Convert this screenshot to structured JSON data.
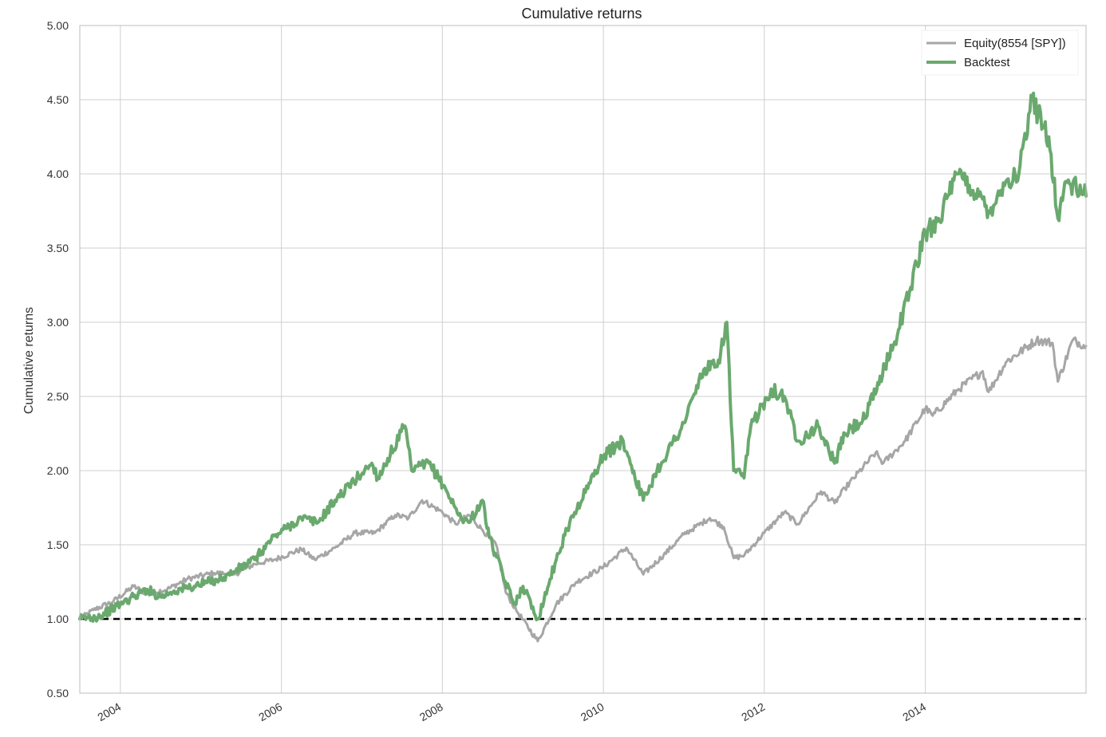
{
  "chart_data": {
    "type": "line",
    "title": "Cumulative returns",
    "ylabel": "Cumulative returns",
    "xlabel": "",
    "xlim": [
      "2003-07-01",
      "2015-12-31"
    ],
    "ylim": [
      0.5,
      5.0
    ],
    "y_ticks": [
      0.5,
      1.0,
      1.5,
      2.0,
      2.5,
      3.0,
      3.5,
      4.0,
      4.5,
      5.0
    ],
    "y_tick_labels": [
      "0.50",
      "1.00",
      "1.50",
      "2.00",
      "2.50",
      "3.00",
      "3.50",
      "4.00",
      "4.50",
      "5.00"
    ],
    "x_ticks": [
      "2004-01-01",
      "2006-01-01",
      "2008-01-01",
      "2010-01-01",
      "2012-01-01",
      "2014-01-01"
    ],
    "x_tick_labels": [
      "2004",
      "2006",
      "2008",
      "2010",
      "2012",
      "2014"
    ],
    "grid": true,
    "legend_position": "top-right",
    "baseline": {
      "y": 1.0,
      "style": "dashed",
      "color": "#000000"
    },
    "series": [
      {
        "name": "Equity(8554 [SPY])",
        "color": "#a6a6a6",
        "x": [
          "2003-07-01",
          "2003-09-01",
          "2003-12-01",
          "2004-03-01",
          "2004-05-01",
          "2004-08-01",
          "2004-11-01",
          "2005-03-01",
          "2005-06-01",
          "2005-09-01",
          "2005-12-01",
          "2006-04-01",
          "2006-06-01",
          "2006-09-01",
          "2006-12-01",
          "2007-03-01",
          "2007-06-01",
          "2007-08-01",
          "2007-10-01",
          "2008-01-01",
          "2008-03-01",
          "2008-05-01",
          "2008-07-01",
          "2008-09-01",
          "2008-10-15",
          "2008-12-01",
          "2009-03-09",
          "2009-06-01",
          "2009-09-01",
          "2010-01-01",
          "2010-04-15",
          "2010-07-01",
          "2010-10-01",
          "2011-01-01",
          "2011-04-29",
          "2011-07-01",
          "2011-08-15",
          "2011-10-03",
          "2012-01-01",
          "2012-04-01",
          "2012-06-01",
          "2012-09-14",
          "2012-11-15",
          "2013-01-01",
          "2013-05-20",
          "2013-06-24",
          "2013-10-01",
          "2014-01-01",
          "2014-02-03",
          "2014-06-01",
          "2014-09-18",
          "2014-10-15",
          "2015-01-01",
          "2015-05-20",
          "2015-08-01",
          "2015-08-25",
          "2015-11-01",
          "2015-12-31"
        ],
        "values": [
          1.0,
          1.06,
          1.12,
          1.22,
          1.17,
          1.2,
          1.27,
          1.31,
          1.3,
          1.37,
          1.4,
          1.47,
          1.4,
          1.48,
          1.58,
          1.58,
          1.7,
          1.68,
          1.8,
          1.72,
          1.64,
          1.7,
          1.6,
          1.5,
          1.18,
          1.06,
          0.85,
          1.1,
          1.25,
          1.35,
          1.48,
          1.3,
          1.43,
          1.57,
          1.68,
          1.62,
          1.41,
          1.43,
          1.58,
          1.72,
          1.64,
          1.86,
          1.78,
          1.88,
          2.12,
          2.05,
          2.2,
          2.42,
          2.37,
          2.55,
          2.67,
          2.53,
          2.73,
          2.88,
          2.86,
          2.6,
          2.88,
          2.84
        ]
      },
      {
        "name": "Backtest",
        "color": "#6aa96e",
        "x": [
          "2003-07-01",
          "2003-10-01",
          "2004-01-01",
          "2004-03-01",
          "2004-05-01",
          "2004-07-01",
          "2004-09-01",
          "2004-12-01",
          "2005-04-15",
          "2005-06-01",
          "2005-09-01",
          "2005-12-01",
          "2006-04-01",
          "2006-06-15",
          "2006-09-01",
          "2007-02-15",
          "2007-03-15",
          "2007-07-15",
          "2007-08-15",
          "2007-11-01",
          "2008-01-15",
          "2008-03-15",
          "2008-05-01",
          "2008-07-01",
          "2008-08-01",
          "2008-10-01",
          "2008-11-20",
          "2009-01-01",
          "2009-03-09",
          "2009-06-01",
          "2009-08-01",
          "2010-01-01",
          "2010-04-01",
          "2010-07-01",
          "2010-09-01",
          "2011-01-01",
          "2011-04-01",
          "2011-06-01",
          "2011-07-15",
          "2011-08-15",
          "2011-10-01",
          "2011-11-01",
          "2012-02-01",
          "2012-04-01",
          "2012-06-01",
          "2012-09-01",
          "2012-11-15",
          "2013-01-01",
          "2013-04-01",
          "2013-07-01",
          "2013-09-01",
          "2014-01-01",
          "2014-03-01",
          "2014-06-01",
          "2014-09-01",
          "2014-10-15",
          "2015-01-01",
          "2015-03-01",
          "2015-05-01",
          "2015-07-15",
          "2015-08-25",
          "2015-10-01",
          "2015-12-31"
        ],
        "values": [
          1.0,
          1.02,
          1.1,
          1.15,
          1.2,
          1.15,
          1.19,
          1.22,
          1.28,
          1.32,
          1.4,
          1.56,
          1.68,
          1.65,
          1.8,
          2.05,
          1.95,
          2.3,
          2.0,
          2.05,
          1.88,
          1.7,
          1.65,
          1.8,
          1.55,
          1.3,
          1.1,
          1.22,
          1.0,
          1.4,
          1.65,
          2.1,
          2.2,
          1.8,
          2.0,
          2.32,
          2.68,
          2.7,
          3.0,
          2.0,
          1.95,
          2.3,
          2.55,
          2.5,
          2.2,
          2.3,
          2.05,
          2.25,
          2.35,
          2.7,
          2.95,
          3.6,
          3.7,
          4.0,
          3.85,
          3.75,
          3.95,
          4.0,
          4.5,
          4.25,
          3.7,
          3.95,
          3.85
        ]
      }
    ]
  }
}
